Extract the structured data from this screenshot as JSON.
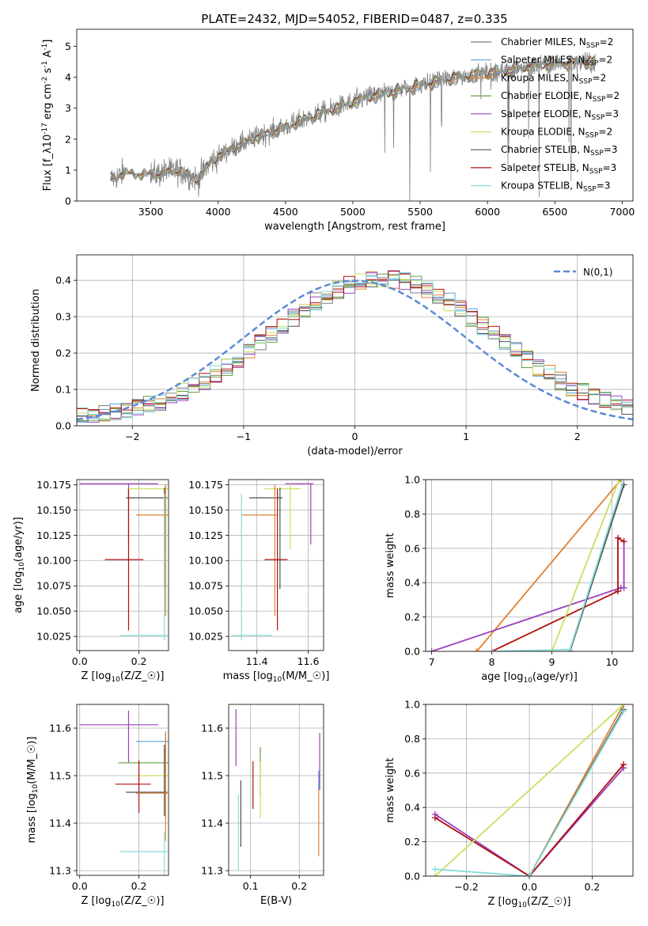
{
  "figure_title": "PLATE=2432, MJD=54052, FIBERID=0487, z=0.335",
  "series_colors": {
    "Chabrier MILES": "#7e7e7e",
    "Salpeter MILES": "#5aa0d8",
    "Kroupa MILES": "#e08030",
    "Chabrier ELODIE": "#60a040",
    "Salpeter ELODIE": "#9a40c0",
    "Kroupa ELODIE": "#c8e060",
    "Chabrier STELIB": "#505050",
    "Salpeter STELIB": "#b01010",
    "Kroupa STELIB": "#88dcd8",
    "normal": "#5b8ad6",
    "grey_spectrum": "#808080"
  },
  "chart_data": [
    {
      "id": "spectrum",
      "type": "line",
      "xlabel": "wavelength [Angstrom, rest frame]",
      "ylabel": "Flux [f_λ10^-17 erg cm^-2 s^-1 A^-1]",
      "xlim": [
        2950,
        7080
      ],
      "ylim": [
        0,
        5.55
      ],
      "xticks": [
        3500,
        4000,
        4500,
        5000,
        5500,
        6000,
        6500,
        7000
      ],
      "yticks": [
        0,
        1,
        2,
        3,
        4,
        5
      ],
      "legend_position": "upper right",
      "legend": [
        "Chabrier MILES, N_SSP=2",
        "Salpeter MILES, N_SSP=2",
        "Kroupa MILES, N_SSP=2",
        "Chabrier ELODIE, N_SSP=2",
        "Salpeter ELODIE, N_SSP=3",
        "Kroupa ELODIE, N_SSP=2",
        "Chabrier STELIB, N_SSP=3",
        "Salpeter STELIB, N_SSP=3",
        "Kroupa STELIB, N_SSP=3"
      ],
      "continuum": [
        [
          3200,
          0.7
        ],
        [
          3300,
          0.9
        ],
        [
          3500,
          0.85
        ],
        [
          3700,
          1.0
        ],
        [
          3850,
          0.7
        ],
        [
          3950,
          1.3
        ],
        [
          4100,
          1.7
        ],
        [
          4300,
          2.1
        ],
        [
          4500,
          2.4
        ],
        [
          4700,
          2.75
        ],
        [
          4900,
          3.05
        ],
        [
          5100,
          3.35
        ],
        [
          5300,
          3.55
        ],
        [
          5500,
          3.75
        ],
        [
          5700,
          3.95
        ],
        [
          5900,
          4.1
        ],
        [
          6100,
          4.2
        ],
        [
          6300,
          4.35
        ],
        [
          6500,
          4.45
        ],
        [
          6700,
          4.5
        ],
        [
          6800,
          4.5
        ]
      ]
    },
    {
      "id": "residuals",
      "type": "histogram",
      "xlabel": "(data-model)/error",
      "ylabel": "Normed distribution",
      "xlim": [
        -2.5,
        2.5
      ],
      "ylim": [
        0,
        0.47
      ],
      "xticks": [
        -2,
        -1,
        0,
        1,
        2
      ],
      "yticks": [
        0.0,
        0.1,
        0.2,
        0.3,
        0.4
      ],
      "legend_position": "upper right",
      "legend": [
        "N(0,1)"
      ],
      "bin_width": 0.1
    },
    {
      "id": "age_vs_Z",
      "type": "errorbar",
      "xlabel": "Z [log10(Z/Z☉)]",
      "ylabel": "age [log10(age/yr)]",
      "xlim": [
        -0.01,
        0.3
      ],
      "ylim": [
        10.011,
        10.18
      ],
      "xticks": [
        0.0,
        0.2
      ],
      "yticks": [
        10.025,
        10.05,
        10.075,
        10.1,
        10.125,
        10.15,
        10.175
      ],
      "points": [
        {
          "series": "Salpeter ELODIE",
          "x": 0.165,
          "y": 10.176,
          "xerr": [
            0.165,
            0.1
          ],
          "yerr": [
            0.06,
            0.0
          ]
        },
        {
          "series": "Kroupa ELODIE",
          "x": 0.29,
          "y": 10.171,
          "xerr": [
            0.13,
            0.01
          ],
          "yerr": [
            0.06,
            0.005
          ]
        },
        {
          "series": "Chabrier STELIB",
          "x": 0.286,
          "y": 10.162,
          "xerr": [
            0.13,
            0.01
          ],
          "yerr": [
            0.09,
            0.01
          ]
        },
        {
          "series": "Kroupa MILES",
          "x": 0.29,
          "y": 10.145,
          "xerr": [
            0.1,
            0.01
          ],
          "yerr": [
            0.1,
            0.03
          ]
        },
        {
          "series": "Salpeter STELIB",
          "x": 0.165,
          "y": 10.101,
          "xerr": [
            0.08,
            0.05
          ],
          "yerr": [
            0.07,
            0.07
          ]
        },
        {
          "series": "Kroupa STELIB",
          "x": 0.286,
          "y": 10.026,
          "xerr": [
            0.15,
            0.01
          ],
          "yerr": [
            0.005,
            0.14
          ]
        }
      ]
    },
    {
      "id": "age_vs_mass",
      "type": "errorbar",
      "xlabel": "mass [log10(M/M☉)]",
      "ylabel": "",
      "xlim": [
        11.29,
        11.66
      ],
      "ylim": [
        10.011,
        10.18
      ],
      "xticks": [
        11.4,
        11.6
      ],
      "yticks": [
        10.025,
        10.05,
        10.075,
        10.1,
        10.125,
        10.15,
        10.175
      ],
      "points": [
        {
          "series": "Salpeter ELODIE",
          "x": 11.61,
          "y": 10.176,
          "xerr": [
            0.1,
            0.01
          ],
          "yerr": [
            0.06,
            0.0
          ]
        },
        {
          "series": "Kroupa ELODIE",
          "x": 11.53,
          "y": 10.171,
          "xerr": [
            0.1,
            0.04
          ],
          "yerr": [
            0.06,
            0.005
          ]
        },
        {
          "series": "Chabrier STELIB",
          "x": 11.49,
          "y": 10.162,
          "xerr": [
            0.12,
            0.01
          ],
          "yerr": [
            0.09,
            0.01
          ]
        },
        {
          "series": "Kroupa MILES",
          "x": 11.47,
          "y": 10.145,
          "xerr": [
            0.13,
            0.01
          ],
          "yerr": [
            0.1,
            0.03
          ]
        },
        {
          "series": "Salpeter STELIB",
          "x": 11.48,
          "y": 10.101,
          "xerr": [
            0.05,
            0.04
          ],
          "yerr": [
            0.07,
            0.07
          ]
        },
        {
          "series": "Kroupa STELIB",
          "x": 11.34,
          "y": 10.026,
          "xerr": [
            0.04,
            0.12
          ],
          "yerr": [
            0.005,
            0.14
          ]
        }
      ]
    },
    {
      "id": "cum_age",
      "type": "line",
      "xlabel": "age  [log10(age/yr)]",
      "ylabel": "mass weight",
      "xlim": [
        6.9,
        10.35
      ],
      "ylim": [
        0,
        1
      ],
      "xticks": [
        7,
        8,
        9,
        10
      ],
      "yticks": [
        0.0,
        0.2,
        0.4,
        0.6,
        0.8,
        1.0
      ],
      "series": [
        {
          "name": "Kroupa MILES",
          "x": [
            7.75,
            10.15
          ],
          "y": [
            0,
            1
          ]
        },
        {
          "name": "Salpeter ELODIE",
          "x": [
            7.0,
            10.15,
            10.2,
            10.2
          ],
          "y": [
            0,
            0.37,
            0.37,
            0.64
          ]
        },
        {
          "name": "Salpeter STELIB",
          "x": [
            8.0,
            10.1,
            10.1,
            10.2
          ],
          "y": [
            0,
            0.35,
            0.66,
            0.64
          ]
        },
        {
          "name": "Kroupa ELODIE",
          "x": [
            9.0,
            10.12
          ],
          "y": [
            0,
            1
          ]
        },
        {
          "name": "Chabrier STELIB",
          "x": [
            9.3,
            10.2
          ],
          "y": [
            0,
            0.97
          ]
        },
        {
          "name": "Kroupa STELIB",
          "x": [
            8.0,
            9.3,
            10.2
          ],
          "y": [
            0,
            0.01,
            1.0
          ]
        }
      ]
    },
    {
      "id": "mass_vs_Z",
      "type": "errorbar",
      "xlabel": "Z [log10(Z/Z☉)]",
      "ylabel": "mass [log10(M/M☉)]",
      "xlim": [
        -0.01,
        0.3
      ],
      "ylim": [
        11.29,
        11.65
      ],
      "xticks": [
        0.0,
        0.2
      ],
      "yticks": [
        11.3,
        11.4,
        11.5,
        11.6
      ],
      "points": [
        {
          "series": "Salpeter ELODIE",
          "x": 0.165,
          "y": 11.607,
          "xerr": [
            0.165,
            0.1
          ],
          "yerr": [
            0.08,
            0.03
          ]
        },
        {
          "series": "Salpeter MILES",
          "x": 0.29,
          "y": 11.572,
          "xerr": [
            0.1,
            0.01
          ],
          "yerr": [
            0.07,
            0.02
          ]
        },
        {
          "series": "Chabrier ELODIE",
          "x": 0.29,
          "y": 11.527,
          "xerr": [
            0.16,
            0.01
          ],
          "yerr": [
            0.06,
            0.03
          ]
        },
        {
          "series": "Kroupa ELODIE",
          "x": 0.29,
          "y": 11.5,
          "xerr": [
            0.1,
            0.01
          ],
          "yerr": [
            0.09,
            0.04
          ]
        },
        {
          "series": "Salpeter STELIB",
          "x": 0.2,
          "y": 11.482,
          "xerr": [
            0.08,
            0.04
          ],
          "yerr": [
            0.06,
            0.05
          ]
        },
        {
          "series": "Chabrier STELIB",
          "x": 0.286,
          "y": 11.465,
          "xerr": [
            0.13,
            0.01
          ],
          "yerr": [
            0.05,
            0.1
          ]
        },
        {
          "series": "Kroupa MILES",
          "x": 0.29,
          "y": 11.463,
          "xerr": [
            0.1,
            0.01
          ],
          "yerr": [
            0.1,
            0.13
          ]
        },
        {
          "series": "Kroupa STELIB",
          "x": 0.286,
          "y": 11.34,
          "xerr": [
            0.15,
            0.01
          ],
          "yerr": [
            0.05,
            0.04
          ]
        }
      ]
    },
    {
      "id": "mass_vs_ebv",
      "type": "errorbar",
      "xlabel": "E(B-V)",
      "ylabel": "",
      "xlim": [
        0.055,
        0.25
      ],
      "ylim": [
        11.29,
        11.65
      ],
      "xticks": [
        0.1,
        0.2
      ],
      "yticks": [
        11.3,
        11.4,
        11.5,
        11.6
      ],
      "points": [
        {
          "series": "Salpeter ELODIE",
          "x": 0.07,
          "y": 11.58,
          "yerr": [
            0.06,
            0.06
          ]
        },
        {
          "series": "Kroupa STELIB",
          "x": 0.075,
          "y": 11.38,
          "yerr": [
            0.08,
            0.08
          ]
        },
        {
          "series": "Chabrier STELIB",
          "x": 0.08,
          "y": 11.42,
          "yerr": [
            0.07,
            0.07
          ]
        },
        {
          "series": "Salpeter STELIB",
          "x": 0.105,
          "y": 11.48,
          "yerr": [
            0.05,
            0.05
          ]
        },
        {
          "series": "Chabrier ELODIE",
          "x": 0.12,
          "y": 11.51,
          "yerr": [
            0.05,
            0.05
          ]
        },
        {
          "series": "Kroupa ELODIE",
          "x": 0.12,
          "y": 11.47,
          "yerr": [
            0.06,
            0.06
          ]
        },
        {
          "series": "Salpeter MILES",
          "x": 0.24,
          "y": 11.49,
          "yerr": [
            0.02,
            0.02
          ]
        },
        {
          "series": "Kroupa MILES",
          "x": 0.24,
          "y": 11.4,
          "yerr": [
            0.07,
            0.07
          ]
        },
        {
          "series": "Salpeter ELODIE",
          "x": 0.242,
          "y": 11.53,
          "yerr": [
            0.06,
            0.06
          ]
        }
      ]
    },
    {
      "id": "cum_Z",
      "type": "line",
      "xlabel": "Z [log10(Z/Z☉)]",
      "ylabel": "mass weight",
      "xlim": [
        -0.33,
        0.33
      ],
      "ylim": [
        0,
        1
      ],
      "xticks": [
        -0.2,
        0.0,
        0.2
      ],
      "yticks": [
        0.0,
        0.2,
        0.4,
        0.6,
        0.8,
        1.0
      ],
      "series": [
        {
          "name": "Salpeter ELODIE",
          "x": [
            -0.3,
            0.0,
            0.3
          ],
          "y": [
            0.36,
            0.0,
            0.63
          ]
        },
        {
          "name": "Salpeter STELIB",
          "x": [
            -0.3,
            0.0,
            0.3
          ],
          "y": [
            0.34,
            0.0,
            0.65
          ]
        },
        {
          "name": "Kroupa MILES",
          "x": [
            0.0,
            0.3
          ],
          "y": [
            0.0,
            1.0
          ]
        },
        {
          "name": "Kroupa ELODIE",
          "x": [
            -0.3,
            0.3
          ],
          "y": [
            0.0,
            1.0
          ]
        },
        {
          "name": "Chabrier STELIB",
          "x": [
            0.0,
            0.3
          ],
          "y": [
            0.0,
            0.97
          ]
        },
        {
          "name": "Kroupa STELIB",
          "x": [
            -0.3,
            0.0,
            0.3
          ],
          "y": [
            0.04,
            0.0,
            0.96
          ]
        }
      ]
    }
  ]
}
